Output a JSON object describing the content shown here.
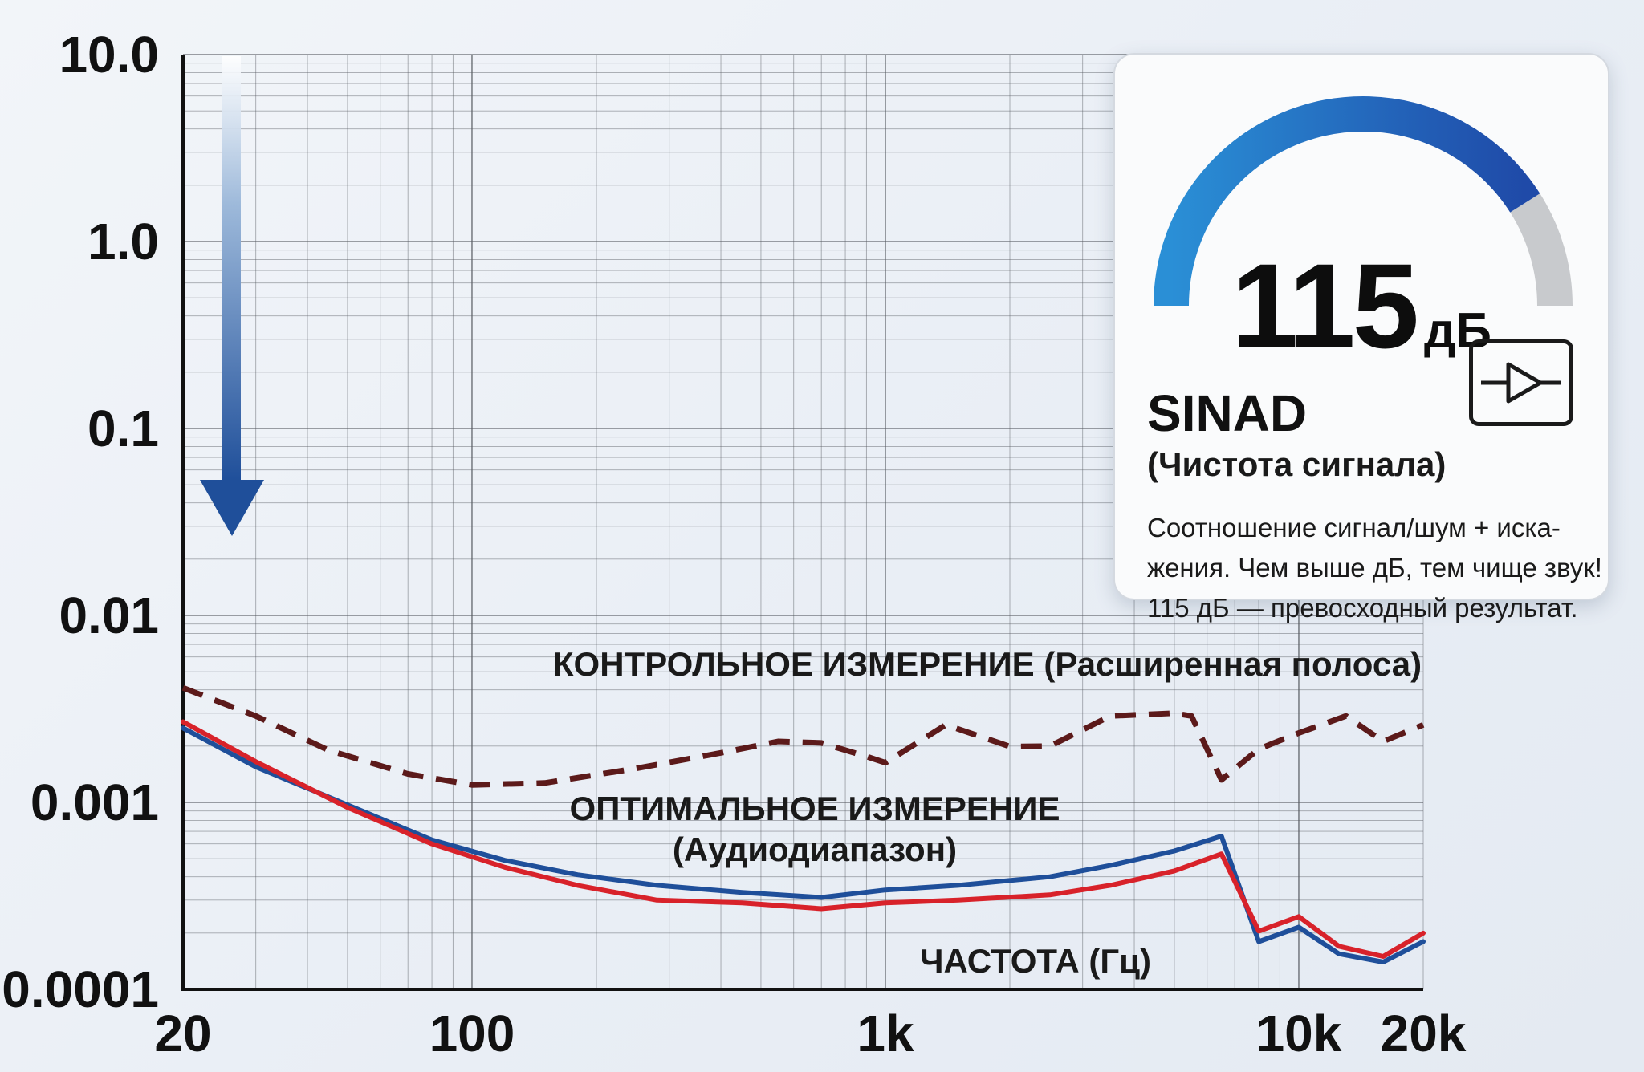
{
  "chart_data": {
    "type": "line",
    "x_scale": "log",
    "y_scale": "log",
    "xlim": [
      20,
      20000
    ],
    "ylim": [
      0.0001,
      10
    ],
    "xticks": [
      20,
      100,
      1000,
      10000,
      20000
    ],
    "xtick_labels": [
      "20",
      "100",
      "1k",
      "10k",
      "20k"
    ],
    "yticks": [
      10,
      1,
      0.1,
      0.01,
      0.001,
      0.0001
    ],
    "ytick_labels": [
      "10.0",
      "1.0",
      "0.1",
      "0.01",
      "0.001",
      "0.0001"
    ],
    "grid": true,
    "xlabel": "ЧАСТОТА (Гц)",
    "series": [
      {
        "name": "КОНТРОЛЬНОЕ ИЗМЕРЕНИЕ (Расширенная полоса)",
        "color": "#5c1a1a",
        "style": "dashed",
        "x": [
          20,
          30,
          45,
          70,
          100,
          150,
          250,
          400,
          550,
          700,
          900,
          1000,
          1400,
          2000,
          2500,
          3500,
          5000,
          5500,
          6500,
          8000,
          10000,
          13000,
          16000,
          20000
        ],
        "y": [
          0.0041,
          0.0029,
          0.0019,
          0.00142,
          0.00124,
          0.00127,
          0.00152,
          0.00184,
          0.00212,
          0.00208,
          0.00176,
          0.00163,
          0.0026,
          0.00199,
          0.002,
          0.0029,
          0.003,
          0.0029,
          0.00132,
          0.00193,
          0.00235,
          0.0029,
          0.00212,
          0.0026
        ]
      },
      {
        "name": "ОПТИМАЛЬНОЕ ИЗМЕРЕНИЕ (Аудиодиапазон)",
        "color": "#1f4f9a",
        "style": "solid",
        "x": [
          20,
          30,
          50,
          80,
          120,
          180,
          280,
          450,
          700,
          1000,
          1500,
          2500,
          3500,
          5000,
          6500,
          8000,
          10000,
          12500,
          16000,
          20000
        ],
        "y": [
          0.0025,
          0.00155,
          0.00097,
          0.00063,
          0.00049,
          0.00041,
          0.00036,
          0.00033,
          0.00031,
          0.00034,
          0.00036,
          0.0004,
          0.00046,
          0.00055,
          0.00066,
          0.00018,
          0.000215,
          0.000155,
          0.00014,
          0.00018
        ]
      },
      {
        "name": "",
        "color": "#d8222a",
        "style": "solid",
        "x": [
          20,
          30,
          50,
          80,
          120,
          180,
          280,
          450,
          700,
          1000,
          1500,
          2500,
          3500,
          5000,
          6500,
          8000,
          10000,
          12500,
          16000,
          20000
        ],
        "y": [
          0.0027,
          0.00165,
          0.00094,
          0.0006,
          0.00045,
          0.00036,
          0.0003,
          0.00029,
          0.00027,
          0.00029,
          0.0003,
          0.00032,
          0.00036,
          0.00043,
          0.00053,
          0.000205,
          0.000245,
          0.00017,
          0.00015,
          0.0002
        ]
      }
    ]
  },
  "card": {
    "value": "115",
    "unit": "дБ",
    "metric": "SINAD",
    "subtitle": "(Чистота сигнала)",
    "description": [
      "Соотношение сигнал/шум + иска-",
      "жения. Чем выше дБ, тем чище звук!",
      "115 дБ — превосходный результат."
    ],
    "icon": "amplifier-icon",
    "gauge_fraction": 0.82,
    "gauge_colors": [
      "#2a8fd6",
      "#1f4aa8",
      "#c8cacd"
    ]
  },
  "colors": {
    "arrow": "#1f4f9a",
    "grid": "#555a60"
  }
}
